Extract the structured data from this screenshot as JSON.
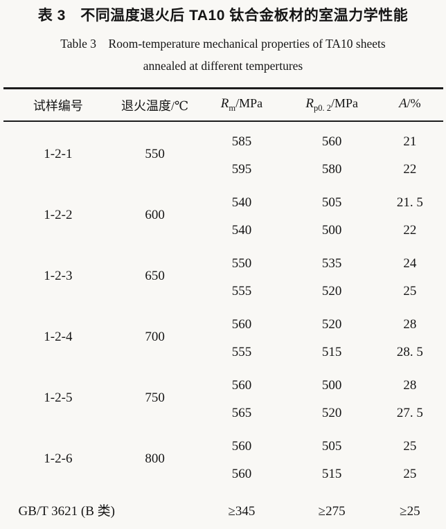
{
  "title": {
    "zh": "表 3 不同温度退火后 TA10 钛合金板材的室温力学性能",
    "en_line1": "Table 3  Room-temperature mechanical properties of TA10 sheets",
    "en_line2": "annealed at different tempertures"
  },
  "table": {
    "headers": [
      {
        "label": "试样编号"
      },
      {
        "label": "退火温度/℃"
      },
      {
        "symbol": "R",
        "sub": "m",
        "unit": "/MPa"
      },
      {
        "symbol": "R",
        "sub": "p0. 2",
        "unit": "/MPa"
      },
      {
        "symbol": "A",
        "sub": "",
        "unit": "/%"
      }
    ],
    "groups": [
      {
        "id": "1-2-1",
        "temp": "550",
        "rows": [
          [
            "585",
            "560",
            "21"
          ],
          [
            "595",
            "580",
            "22"
          ]
        ]
      },
      {
        "id": "1-2-2",
        "temp": "600",
        "rows": [
          [
            "540",
            "505",
            "21. 5"
          ],
          [
            "540",
            "500",
            "22"
          ]
        ]
      },
      {
        "id": "1-2-3",
        "temp": "650",
        "rows": [
          [
            "550",
            "535",
            "24"
          ],
          [
            "555",
            "520",
            "25"
          ]
        ]
      },
      {
        "id": "1-2-4",
        "temp": "700",
        "rows": [
          [
            "560",
            "520",
            "28"
          ],
          [
            "555",
            "515",
            "28. 5"
          ]
        ]
      },
      {
        "id": "1-2-5",
        "temp": "750",
        "rows": [
          [
            "560",
            "500",
            "28"
          ],
          [
            "565",
            "520",
            "27. 5"
          ]
        ]
      },
      {
        "id": "1-2-6",
        "temp": "800",
        "rows": [
          [
            "560",
            "505",
            "25"
          ],
          [
            "560",
            "515",
            "25"
          ]
        ]
      }
    ],
    "footer": {
      "label": "GB/T 3621 (B 类)",
      "rm": "≥345",
      "rp": "≥275",
      "a": "≥25"
    }
  },
  "colors": {
    "text": "#151515",
    "rule": "#1c1c1c",
    "paper": "#f9f8f5"
  }
}
